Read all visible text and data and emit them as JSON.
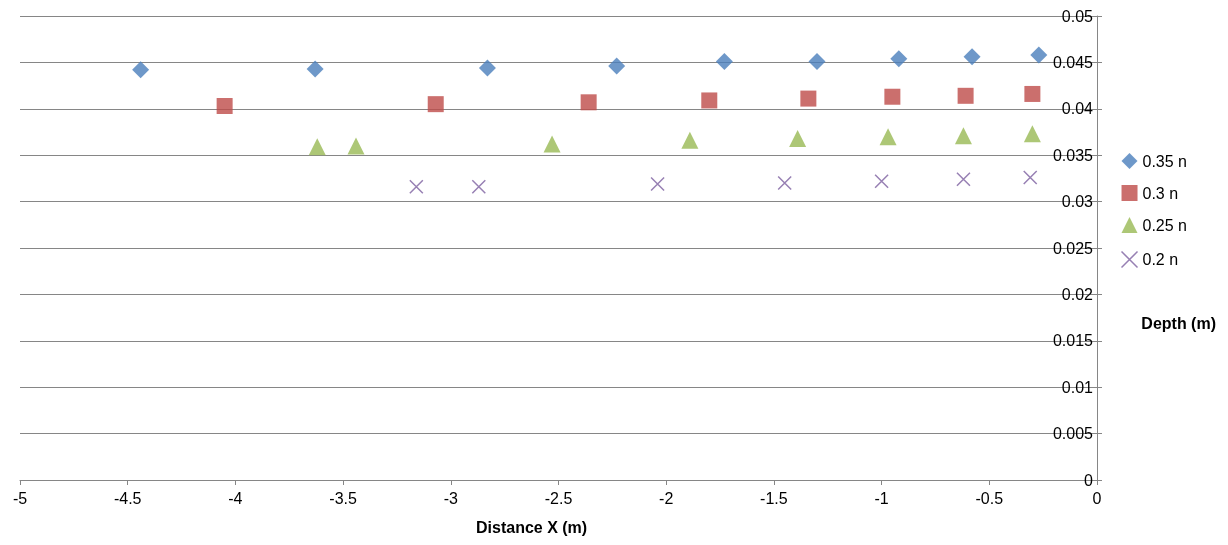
{
  "chart_data": {
    "type": "scatter",
    "xlabel": "Distance X (m)",
    "ylabel": "Depth (m)",
    "xlim": [
      -5,
      0
    ],
    "xticks": [
      -5,
      -4.5,
      -4,
      -3.5,
      -3,
      -2.5,
      -2,
      -1.5,
      -1,
      -0.5,
      0
    ],
    "ylim": [
      0,
      0.05
    ],
    "yticks": [
      0,
      0.005,
      0.01,
      0.015,
      0.02,
      0.025,
      0.03,
      0.035,
      0.04,
      0.045,
      0.05
    ],
    "grid": "y",
    "legend": "right",
    "series": [
      {
        "name": "0.35 n",
        "color": "#4a7ebb",
        "marker": "diamond",
        "x": [
          -4.44,
          -3.63,
          -2.83,
          -2.23,
          -1.73,
          -1.3,
          -0.92,
          -0.58,
          -0.27
        ],
        "values": [
          0.0442,
          0.0443,
          0.0444,
          0.0446,
          0.0451,
          0.0451,
          0.0454,
          0.0456,
          0.0458
        ]
      },
      {
        "name": "0.3 n",
        "color": "#be4b48",
        "marker": "square",
        "x": [
          -4.05,
          -3.07,
          -2.36,
          -1.8,
          -1.34,
          -0.95,
          -0.61,
          -0.3
        ],
        "values": [
          0.0403,
          0.0405,
          0.0407,
          0.0409,
          0.0411,
          0.0413,
          0.0414,
          0.0416
        ]
      },
      {
        "name": "0.25 n",
        "color": "#98b954",
        "marker": "triangle",
        "x": [
          -3.62,
          -3.44,
          -2.53,
          -1.89,
          -1.39,
          -0.97,
          -0.62,
          -0.3
        ],
        "values": [
          0.0359,
          0.036,
          0.0362,
          0.0366,
          0.0368,
          0.037,
          0.0371,
          0.0373
        ]
      },
      {
        "name": "0.2 n",
        "color": "#7d60a0",
        "marker": "cross",
        "x": [
          -3.16,
          -2.87,
          -2.04,
          -1.45,
          -1.0,
          -0.62,
          -0.31
        ],
        "values": [
          0.0316,
          0.0316,
          0.0319,
          0.032,
          0.0322,
          0.0324,
          0.0326
        ]
      }
    ]
  }
}
